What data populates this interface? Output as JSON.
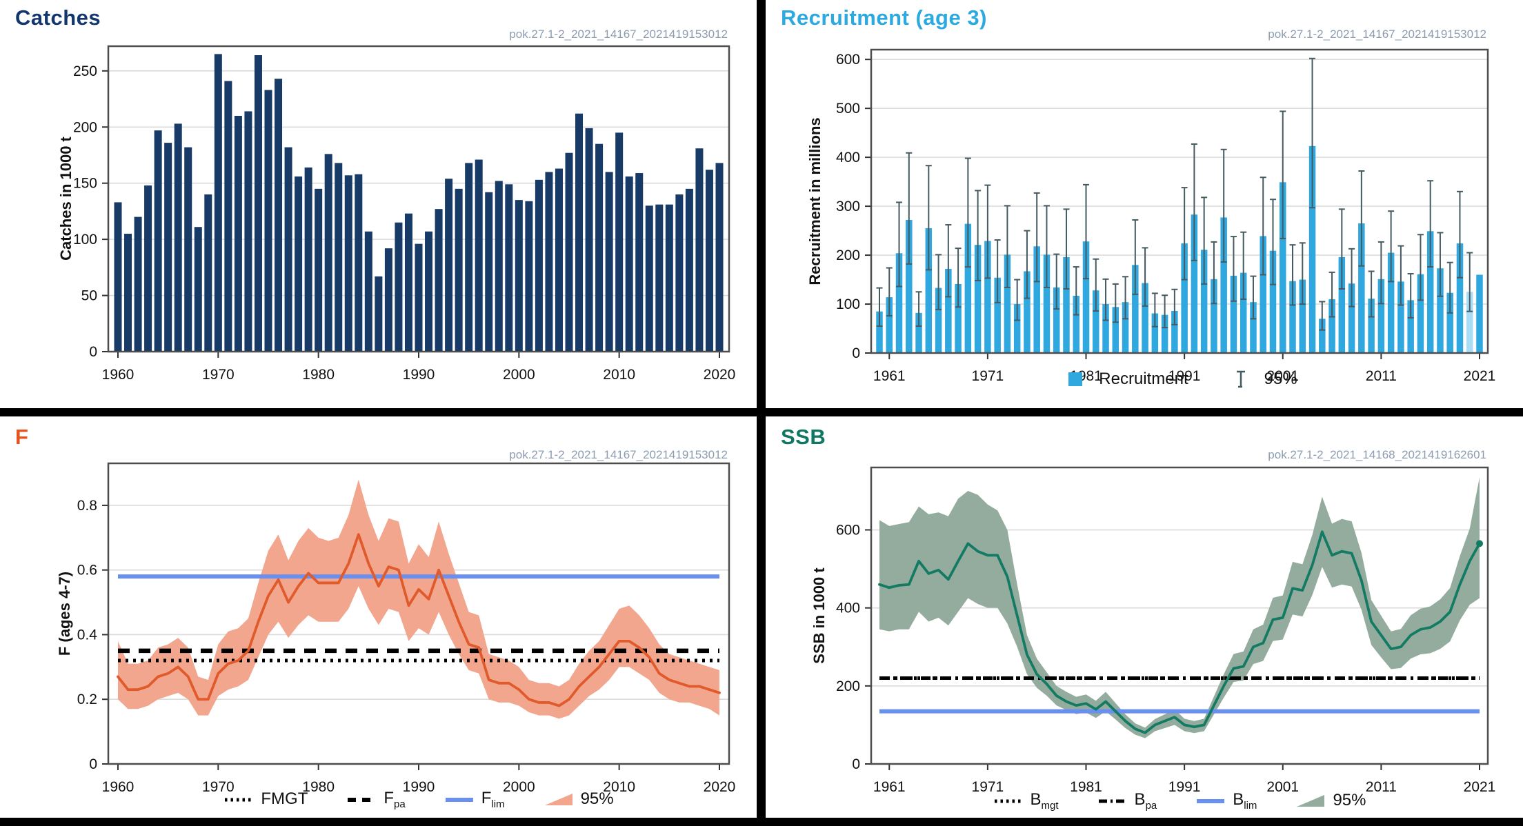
{
  "colors": {
    "divider": "#000000",
    "subtitle_text": "#8C9CB0",
    "grid": "#DBDBDB",
    "frame": "#4D4D4D",
    "tick_text": "#111111",
    "ref_blue": "#6990F0",
    "catches_title": "#14366F",
    "catches_bar": "#173A66",
    "recruitment_title": "#2BA9E0",
    "recruitment_bar": "#2FA8DF",
    "recruitment_bar_highlight": "#A9DCF5",
    "recruitment_error": "#455A61",
    "f_title": "#E8511E",
    "f_line": "#E05A2B",
    "f_band": "#F2A68E",
    "ssb_title": "#107862",
    "ssb_line": "#137A63",
    "ssb_band": "#94AC9D"
  },
  "panels": {
    "catches": {
      "title": "Catches",
      "subtitle": "pok.27.1-2_2021_14167_2021419153012",
      "chart_data": {
        "type": "bar",
        "title": "Catches",
        "ylabel": "Catches in 1000 t",
        "ylim": [
          0,
          272
        ],
        "yticks": [
          0,
          50,
          100,
          150,
          200,
          250
        ],
        "xticks": [
          1960,
          1970,
          1980,
          1990,
          2000,
          2010,
          2020
        ],
        "years": {
          "start": 1960,
          "end": 2020
        },
        "bar_color": "#173A66",
        "grid": true,
        "values": [
          133,
          105,
          120,
          148,
          197,
          186,
          203,
          182,
          111,
          140,
          265,
          241,
          210,
          214,
          264,
          233,
          243,
          182,
          156,
          164,
          145,
          176,
          168,
          157,
          158,
          107,
          67,
          92,
          115,
          123,
          96,
          107,
          127,
          154,
          145,
          168,
          171,
          142,
          152,
          149,
          135,
          134,
          153,
          160,
          163,
          177,
          212,
          199,
          185,
          160,
          195,
          156,
          159,
          130,
          131,
          131,
          140,
          145,
          181,
          162,
          168
        ]
      }
    },
    "recruitment": {
      "title": "Recruitment (age 3)",
      "subtitle": "pok.27.1-2_2021_14167_2021419153012",
      "chart_data": {
        "type": "bar",
        "title": "Recruitment (age 3)",
        "ylabel": "Recruitment in millions",
        "ylim": [
          0,
          620
        ],
        "yticks": [
          0,
          100,
          200,
          300,
          400,
          500,
          600
        ],
        "xticks": [
          1961,
          1971,
          1981,
          1991,
          2001,
          2011,
          2021
        ],
        "years": {
          "start": 1960,
          "end": 2021
        },
        "bar_color": "#2FA8DF",
        "highlight_year": 2020,
        "highlight_color": "#A9DCF5",
        "error_color": "#455A61",
        "grid": true,
        "values": [
          85,
          114,
          204,
          272,
          82,
          255,
          133,
          172,
          141,
          264,
          221,
          229,
          154,
          201,
          100,
          167,
          218,
          201,
          134,
          196,
          117,
          228,
          128,
          100,
          94,
          104,
          180,
          143,
          81,
          78,
          86,
          224,
          283,
          211,
          151,
          277,
          158,
          164,
          104,
          239,
          209,
          349,
          147,
          150,
          423,
          70,
          110,
          196,
          142,
          265,
          111,
          151,
          205,
          146,
          108,
          161,
          249,
          173,
          123,
          224,
          125,
          160
        ],
        "ci_low": [
          55,
          76,
          136,
          182,
          55,
          170,
          89,
          115,
          94,
          176,
          148,
          153,
          103,
          134,
          67,
          112,
          146,
          134,
          90,
          131,
          78,
          152,
          86,
          67,
          63,
          70,
          120,
          96,
          54,
          52,
          58,
          150,
          189,
          141,
          101,
          186,
          106,
          110,
          70,
          160,
          140,
          234,
          98,
          100,
          297,
          47,
          74,
          131,
          95,
          178,
          74,
          101,
          146,
          98,
          72,
          108,
          176,
          116,
          82,
          154,
          85,
          null
        ],
        "ci_high": [
          133,
          174,
          308,
          409,
          125,
          383,
          201,
          262,
          214,
          398,
          332,
          343,
          231,
          301,
          150,
          250,
          327,
          301,
          202,
          294,
          176,
          344,
          192,
          151,
          141,
          156,
          272,
          215,
          122,
          118,
          130,
          338,
          427,
          318,
          227,
          416,
          238,
          247,
          157,
          359,
          314,
          494,
          221,
          225,
          602,
          105,
          165,
          294,
          213,
          372,
          167,
          227,
          290,
          219,
          162,
          242,
          352,
          246,
          185,
          330,
          205,
          null
        ],
        "legend": [
          {
            "swatch": "square",
            "label": "Recruitment"
          },
          {
            "swatch": "errorbar",
            "label": "95%"
          }
        ]
      }
    },
    "f": {
      "title": "F",
      "subtitle": "pok.27.1-2_2021_14167_2021419153012",
      "chart_data": {
        "type": "line",
        "title": "F",
        "ylabel": "F (ages 4-7)",
        "ylim": [
          0,
          0.93
        ],
        "yticks": [
          0,
          0.2,
          0.4,
          0.6,
          0.8
        ],
        "xticks": [
          1960,
          1970,
          1980,
          1990,
          2000,
          2010,
          2020
        ],
        "years": {
          "start": 1960,
          "end": 2020
        },
        "line_color": "#E05A2B",
        "band_color": "#F2A68E",
        "grid": true,
        "values": [
          0.27,
          0.23,
          0.23,
          0.24,
          0.27,
          0.28,
          0.3,
          0.27,
          0.2,
          0.2,
          0.28,
          0.31,
          0.32,
          0.35,
          0.44,
          0.52,
          0.57,
          0.5,
          0.55,
          0.59,
          0.56,
          0.56,
          0.56,
          0.62,
          0.71,
          0.62,
          0.55,
          0.61,
          0.6,
          0.49,
          0.54,
          0.51,
          0.6,
          0.52,
          0.44,
          0.37,
          0.36,
          0.26,
          0.25,
          0.25,
          0.23,
          0.2,
          0.19,
          0.19,
          0.18,
          0.2,
          0.24,
          0.27,
          0.3,
          0.34,
          0.38,
          0.38,
          0.36,
          0.33,
          0.28,
          0.26,
          0.25,
          0.24,
          0.24,
          0.23,
          0.22
        ],
        "band_low": [
          0.2,
          0.17,
          0.17,
          0.18,
          0.2,
          0.21,
          0.22,
          0.2,
          0.15,
          0.15,
          0.21,
          0.23,
          0.24,
          0.26,
          0.33,
          0.4,
          0.44,
          0.39,
          0.43,
          0.46,
          0.44,
          0.44,
          0.44,
          0.48,
          0.55,
          0.48,
          0.43,
          0.48,
          0.47,
          0.38,
          0.42,
          0.4,
          0.47,
          0.4,
          0.34,
          0.29,
          0.28,
          0.2,
          0.19,
          0.19,
          0.18,
          0.16,
          0.15,
          0.15,
          0.14,
          0.15,
          0.18,
          0.21,
          0.23,
          0.26,
          0.3,
          0.3,
          0.28,
          0.26,
          0.22,
          0.2,
          0.19,
          0.19,
          0.18,
          0.17,
          0.15
        ],
        "band_high": [
          0.38,
          0.31,
          0.31,
          0.32,
          0.36,
          0.37,
          0.39,
          0.36,
          0.27,
          0.26,
          0.37,
          0.41,
          0.42,
          0.45,
          0.56,
          0.66,
          0.71,
          0.63,
          0.69,
          0.73,
          0.7,
          0.69,
          0.7,
          0.77,
          0.88,
          0.77,
          0.69,
          0.76,
          0.75,
          0.62,
          0.68,
          0.64,
          0.75,
          0.65,
          0.56,
          0.47,
          0.46,
          0.34,
          0.33,
          0.32,
          0.3,
          0.26,
          0.25,
          0.25,
          0.24,
          0.26,
          0.31,
          0.35,
          0.38,
          0.43,
          0.48,
          0.49,
          0.46,
          0.42,
          0.37,
          0.34,
          0.33,
          0.32,
          0.31,
          0.3,
          0.29
        ],
        "ref_lines": [
          {
            "name": "FMGT",
            "value": 0.32,
            "style": "dotted",
            "color": "#000000"
          },
          {
            "name": "Fpa",
            "value": 0.35,
            "style": "dashed",
            "color": "#000000"
          },
          {
            "name": "Flim",
            "value": 0.58,
            "style": "solid",
            "color": "#6990F0"
          }
        ],
        "legend": [
          {
            "swatch": "dotted",
            "label": "FMGT"
          },
          {
            "swatch": "dashed",
            "label": "F",
            "sub": "pa"
          },
          {
            "swatch": "solid-blue",
            "label": "F",
            "sub": "lim"
          },
          {
            "swatch": "band",
            "label": "95%"
          }
        ]
      }
    },
    "ssb": {
      "title": "SSB",
      "subtitle": "pok.27.1-2_2021_14168_2021419162601",
      "chart_data": {
        "type": "line",
        "title": "SSB",
        "ylabel": "SSB in 1000 t",
        "ylim": [
          0,
          760
        ],
        "yticks": [
          0,
          200,
          400,
          600
        ],
        "xticks": [
          1961,
          1971,
          1981,
          1991,
          2001,
          2011,
          2021
        ],
        "years": {
          "start": 1960,
          "end": 2021
        },
        "line_color": "#137A63",
        "band_color": "#94AC9D",
        "endpoint_dot": true,
        "grid": true,
        "values": [
          460,
          452,
          458,
          460,
          520,
          488,
          497,
          473,
          520,
          565,
          545,
          535,
          535,
          480,
          380,
          280,
          230,
          205,
          175,
          160,
          150,
          155,
          140,
          160,
          135,
          110,
          90,
          80,
          100,
          110,
          120,
          100,
          95,
          100,
          150,
          200,
          245,
          250,
          300,
          310,
          370,
          375,
          450,
          445,
          510,
          595,
          535,
          545,
          540,
          470,
          365,
          330,
          295,
          300,
          330,
          345,
          350,
          365,
          390,
          460,
          520,
          565
        ],
        "band_low": [
          345,
          340,
          345,
          345,
          390,
          365,
          375,
          355,
          390,
          425,
          410,
          400,
          400,
          360,
          300,
          230,
          195,
          175,
          150,
          138,
          128,
          132,
          118,
          135,
          114,
          92,
          75,
          66,
          84,
          92,
          100,
          84,
          79,
          84,
          127,
          170,
          210,
          214,
          256,
          264,
          315,
          319,
          383,
          378,
          433,
          505,
          452,
          460,
          455,
          395,
          305,
          273,
          243,
          246,
          270,
          281,
          284,
          295,
          314,
          368,
          408,
          425
        ],
        "band_high": [
          625,
          610,
          615,
          620,
          660,
          640,
          645,
          635,
          680,
          700,
          690,
          665,
          650,
          600,
          460,
          330,
          270,
          235,
          200,
          185,
          172,
          178,
          162,
          185,
          156,
          127,
          104,
          93,
          115,
          127,
          140,
          116,
          110,
          116,
          173,
          230,
          282,
          288,
          345,
          357,
          426,
          432,
          518,
          512,
          587,
          685,
          616,
          628,
          622,
          541,
          420,
          380,
          340,
          346,
          381,
          398,
          404,
          422,
          451,
          533,
          603,
          735
        ],
        "ref_lines": [
          {
            "name": "Bmgt",
            "value": 220,
            "style": "dotted",
            "color": "#000000"
          },
          {
            "name": "Bpa",
            "value": 220,
            "style": "dashdot",
            "color": "#000000"
          },
          {
            "name": "Blim",
            "value": 135,
            "style": "solid",
            "color": "#6990F0"
          }
        ],
        "legend": [
          {
            "swatch": "dotted",
            "label": "B",
            "sub": "mgt"
          },
          {
            "swatch": "dashdot",
            "label": "B",
            "sub": "pa"
          },
          {
            "swatch": "solid-blue",
            "label": "B",
            "sub": "lim"
          },
          {
            "swatch": "band",
            "label": "95%"
          }
        ]
      }
    }
  }
}
